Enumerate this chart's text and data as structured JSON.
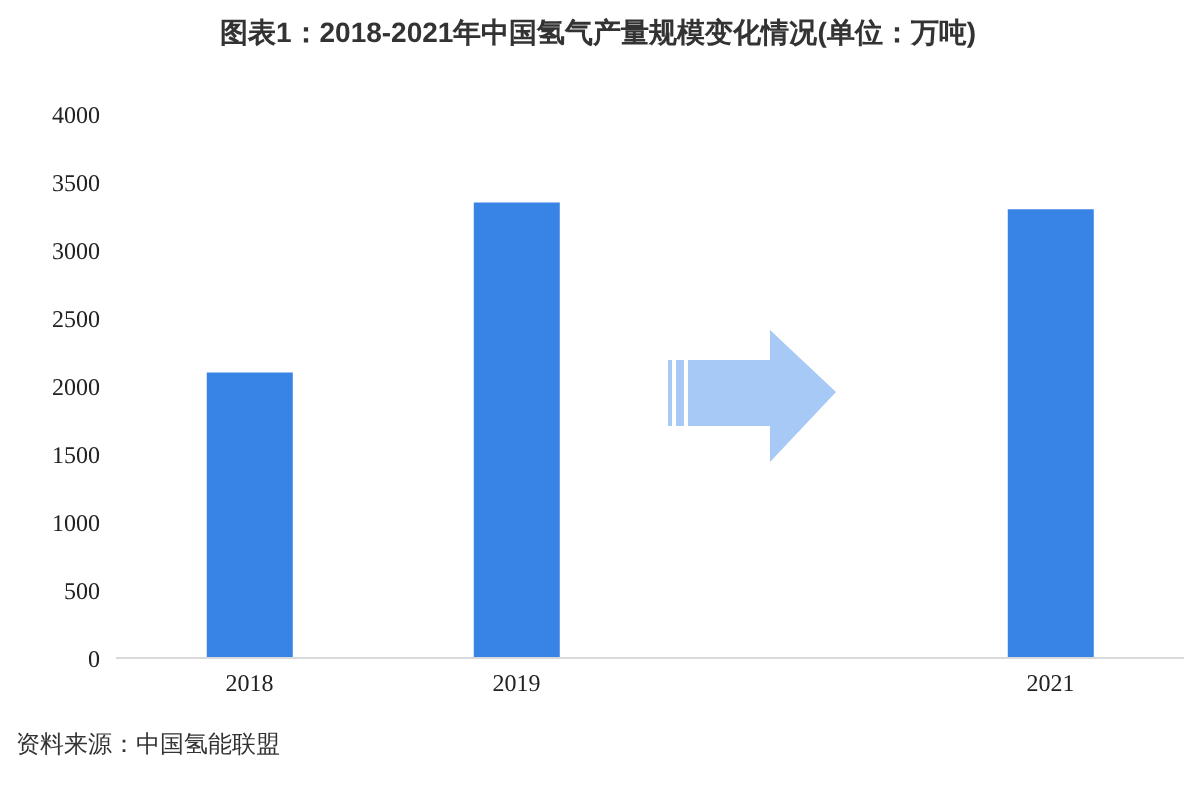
{
  "chart_data": {
    "type": "bar",
    "title": "图表1：2018-2021年中国氢气产量规模变化情况(单位：万吨)",
    "categories": [
      "2018",
      "2019",
      null,
      "2021"
    ],
    "values": [
      2100,
      3350,
      null,
      3300
    ],
    "color": "#3884e6",
    "ylim": [
      0,
      4000
    ],
    "yticks": [
      0,
      500,
      1000,
      1500,
      2000,
      2500,
      3000,
      3500,
      4000
    ],
    "grid": false,
    "legend": false,
    "annotations": [
      "资料来源：中国氢能联盟"
    ]
  }
}
